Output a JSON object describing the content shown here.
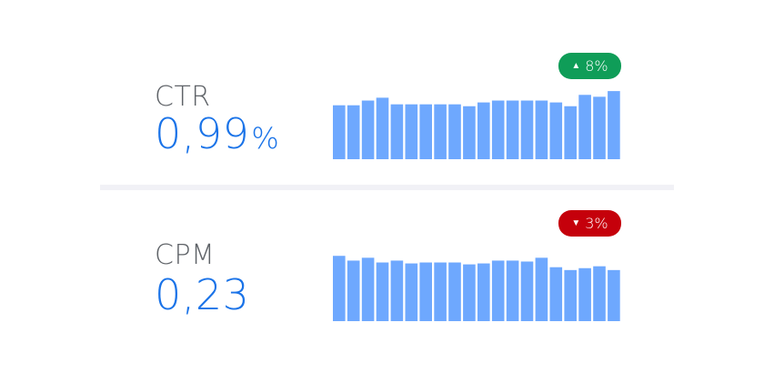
{
  "metrics": [
    {
      "key": "ctr",
      "label": "CTR",
      "value": "0,99",
      "unit": "%",
      "change": "8%",
      "direction": "up",
      "badge_color": "#0f9d58",
      "bar_color": "#6ea8fe",
      "bars": [
        57,
        57,
        62,
        65,
        58,
        58,
        58,
        58,
        58,
        56,
        60,
        62,
        62,
        62,
        62,
        60,
        56,
        68,
        66,
        72
      ]
    },
    {
      "key": "cpm",
      "label": "CPM",
      "value": "0,23",
      "unit": "",
      "change": "3%",
      "direction": "down",
      "badge_color": "#c5000b",
      "bar_color": "#6ea8fe",
      "bars": [
        69,
        64,
        67,
        62,
        64,
        61,
        62,
        62,
        62,
        60,
        61,
        64,
        64,
        63,
        67,
        57,
        54,
        56,
        58,
        54
      ]
    }
  ]
}
